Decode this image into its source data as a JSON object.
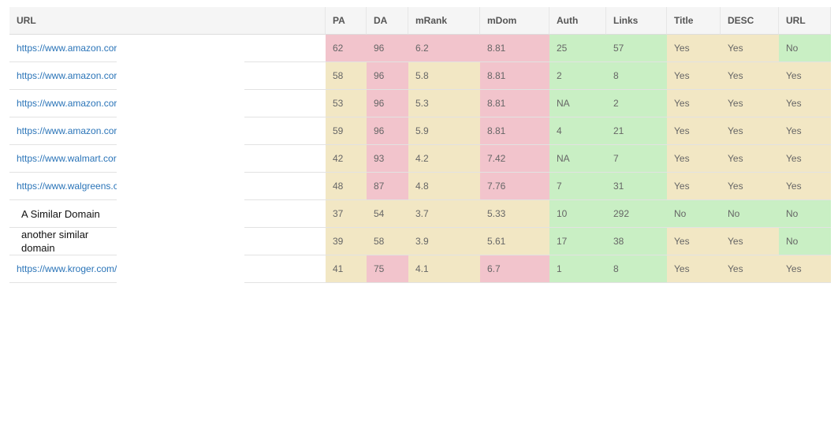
{
  "table": {
    "header": [
      "URL",
      "PA",
      "DA",
      "mRank",
      "mDom",
      "Auth",
      "Links",
      "Title",
      "DESC",
      "URL"
    ],
    "rows": [
      [
        "https://www.amazon.cor",
        "62",
        "96",
        "6.2",
        "8.81",
        "25",
        "57",
        "Yes",
        "Yes",
        "No"
      ],
      [
        "https://www.amazon.cor",
        "58",
        "96",
        "5.8",
        "8.81",
        "2",
        "8",
        "Yes",
        "Yes",
        "Yes"
      ],
      [
        "https://www.amazon.cor",
        "53",
        "96",
        "5.3",
        "8.81",
        "NA",
        "2",
        "Yes",
        "Yes",
        "Yes"
      ],
      [
        "https://www.amazon.cor",
        "59",
        "96",
        "5.9",
        "8.81",
        "4",
        "21",
        "Yes",
        "Yes",
        "Yes"
      ],
      [
        "https://www.walmart.cor",
        "42",
        "93",
        "4.2",
        "7.42",
        "NA",
        "7",
        "Yes",
        "Yes",
        "Yes"
      ],
      [
        "https://www.walgreens.c",
        "48",
        "87",
        "4.8",
        "7.76",
        "7",
        "31",
        "Yes",
        "Yes",
        "Yes"
      ],
      [
        "A Similar Domain",
        "37",
        "54",
        "3.7",
        "5.33",
        "10",
        "292",
        "No",
        "No",
        "No"
      ],
      [
        "another similar domain",
        "39",
        "58",
        "3.9",
        "5.61",
        "17",
        "38",
        "Yes",
        "Yes",
        "No"
      ],
      [
        "https://www.kroger.com/",
        "41",
        "75",
        "4.1",
        "6.7",
        "1",
        "8",
        "Yes",
        "Yes",
        "Yes"
      ]
    ],
    "colors": [
      [
        "#f2c4cc",
        "#f2c4cc",
        "#f2c4cc",
        "#f2c4cc",
        "#c9efc4",
        "#c9efc4",
        "#f2e7c4",
        "#f2e7c4",
        "#c9efc4"
      ],
      [
        "#f2e7c4",
        "#f2c4cc",
        "#f2e7c4",
        "#f2c4cc",
        "#c9efc4",
        "#c9efc4",
        "#f2e7c4",
        "#f2e7c4",
        "#f2e7c4"
      ],
      [
        "#f2e7c4",
        "#f2c4cc",
        "#f2e7c4",
        "#f2c4cc",
        "#c9efc4",
        "#c9efc4",
        "#f2e7c4",
        "#f2e7c4",
        "#f2e7c4"
      ],
      [
        "#f2e7c4",
        "#f2c4cc",
        "#f2e7c4",
        "#f2c4cc",
        "#c9efc4",
        "#c9efc4",
        "#f2e7c4",
        "#f2e7c4",
        "#f2e7c4"
      ],
      [
        "#f2e7c4",
        "#f2c4cc",
        "#f2e7c4",
        "#f2c4cc",
        "#c9efc4",
        "#c9efc4",
        "#f2e7c4",
        "#f2e7c4",
        "#f2e7c4"
      ],
      [
        "#f2e7c4",
        "#f2c4cc",
        "#f2e7c4",
        "#f2c4cc",
        "#c9efc4",
        "#c9efc4",
        "#f2e7c4",
        "#f2e7c4",
        "#f2e7c4"
      ],
      [
        "#f2e7c4",
        "#f2e7c4",
        "#f2e7c4",
        "#f2e7c4",
        "#c9efc4",
        "#c9efc4",
        "#c9efc4",
        "#c9efc4",
        "#c9efc4"
      ],
      [
        "#f2e7c4",
        "#f2e7c4",
        "#f2e7c4",
        "#f2e7c4",
        "#c9efc4",
        "#c9efc4",
        "#f2e7c4",
        "#f2e7c4",
        "#c9efc4"
      ],
      [
        "#f2e7c4",
        "#f2c4cc",
        "#f2e7c4",
        "#f2c4cc",
        "#c9efc4",
        "#c9efc4",
        "#f2e7c4",
        "#f2e7c4",
        "#f2e7c4"
      ]
    ]
  }
}
